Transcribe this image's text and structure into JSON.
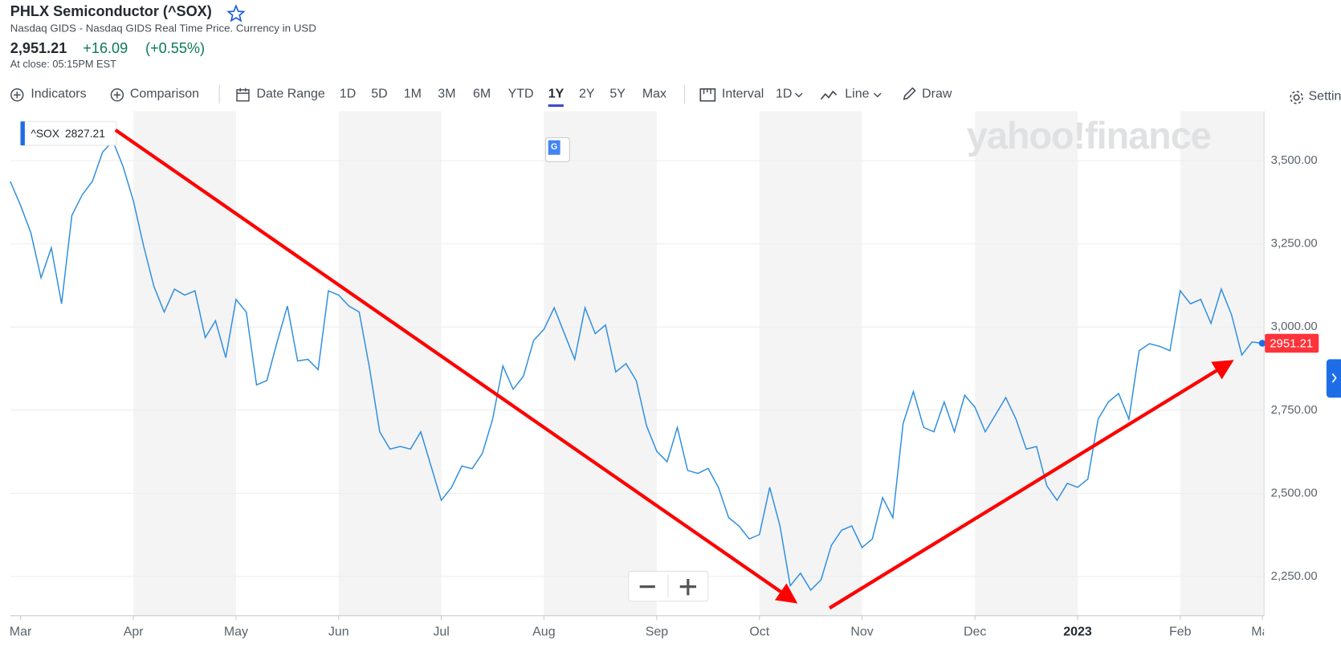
{
  "header": {
    "title": "PHLX Semiconductor (^SOX)",
    "subtitle": "Nasdaq GIDS - Nasdaq GIDS Real Time Price. Currency in USD",
    "price": "2,951.21",
    "change": "+16.09",
    "change_percent": "(+0.55%)",
    "close_time": "At close: 05:15PM EST"
  },
  "toolbar": {
    "indicators": "Indicators",
    "comparison": "Comparison",
    "date_range": "Date Range",
    "ranges": [
      "1D",
      "5D",
      "1M",
      "3M",
      "6M",
      "YTD",
      "1Y",
      "2Y",
      "5Y",
      "Max"
    ],
    "active_range": "1Y",
    "interval": "Interval",
    "interval_value": "1D",
    "chart_type": "Line",
    "draw": "Draw",
    "settings": "Settings"
  },
  "watermark": "yahoo!finance",
  "chart_data": {
    "type": "line",
    "categories": [
      null,
      "Mar",
      null,
      null,
      null,
      null,
      null,
      null,
      null,
      null,
      null,
      null,
      "Apr",
      null,
      null,
      null,
      null,
      null,
      null,
      null,
      null,
      null,
      "May",
      null,
      null,
      null,
      null,
      null,
      null,
      null,
      null,
      null,
      "Jun",
      null,
      null,
      null,
      null,
      null,
      null,
      null,
      null,
      null,
      "Jul",
      null,
      null,
      null,
      null,
      null,
      null,
      null,
      null,
      null,
      "Aug",
      null,
      null,
      null,
      null,
      null,
      null,
      null,
      null,
      null,
      null,
      "Sep",
      null,
      null,
      null,
      null,
      null,
      null,
      null,
      null,
      null,
      "Oct",
      null,
      null,
      null,
      null,
      null,
      null,
      null,
      null,
      null,
      "Nov",
      null,
      null,
      null,
      null,
      null,
      null,
      null,
      null,
      null,
      null,
      "Dec",
      null,
      null,
      null,
      null,
      null,
      null,
      null,
      null,
      null,
      "2023",
      null,
      null,
      null,
      null,
      null,
      null,
      null,
      null,
      null,
      "Feb",
      null,
      null,
      null,
      null,
      null,
      null,
      null,
      "Mar"
    ],
    "series": [
      {
        "name": "^SOX",
        "color": "#2f8fe0",
        "values": [
          3438,
          3366,
          3284,
          3148,
          3238,
          3070,
          3335,
          3397,
          3438,
          3526,
          3559,
          3482,
          3379,
          3243,
          3122,
          3045,
          3114,
          3096,
          3109,
          2968,
          3019,
          2908,
          3083,
          3045,
          2826,
          2839,
          2955,
          3063,
          2898,
          2903,
          2872,
          3109,
          3096,
          3063,
          3045,
          2878,
          2685,
          2633,
          2641,
          2633,
          2685,
          2582,
          2479,
          2518,
          2582,
          2574,
          2620,
          2723,
          2883,
          2813,
          2852,
          2960,
          2993,
          3058,
          2980,
          2903,
          3058,
          2980,
          3006,
          2865,
          2890,
          2839,
          2703,
          2626,
          2595,
          2698,
          2569,
          2560,
          2575,
          2518,
          2427,
          2402,
          2363,
          2376,
          2518,
          2402,
          2222,
          2260,
          2209,
          2240,
          2343,
          2389,
          2402,
          2337,
          2363,
          2487,
          2427,
          2710,
          2806,
          2698,
          2685,
          2775,
          2685,
          2795,
          2759,
          2685,
          2736,
          2788,
          2723,
          2633,
          2641,
          2523,
          2479,
          2530,
          2518,
          2543,
          2723,
          2775,
          2800,
          2723,
          2929,
          2950,
          2942,
          2929,
          3109,
          3070,
          3083,
          3011,
          3114,
          3037,
          2916,
          2955,
          2951.21
        ]
      }
    ],
    "hover_value": 2827.21,
    "last_value_color": "#ff333a",
    "ylim": [
      2132,
      3649
    ],
    "yticks": [
      {
        "value": 2250,
        "label": "2,250.00"
      },
      {
        "value": 2500,
        "label": "2,500.00"
      },
      {
        "value": 2750,
        "label": "2,750.00"
      },
      {
        "value": 3000,
        "label": "3,000.00"
      },
      {
        "value": 3250,
        "label": "3,250.00"
      },
      {
        "value": 3500,
        "label": "3,500.00"
      }
    ],
    "grid": true
  }
}
